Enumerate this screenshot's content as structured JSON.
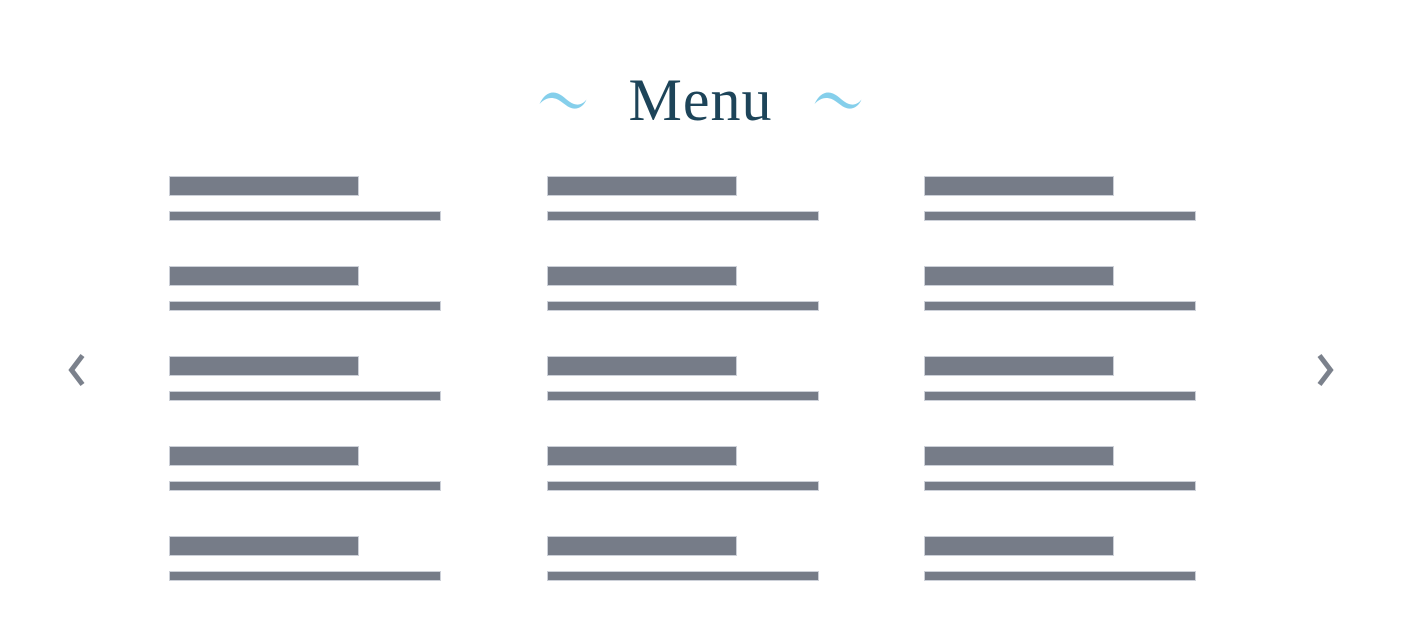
{
  "header": {
    "title": "Menu",
    "title_color": "#1d4459",
    "wave_left_icon": "wave-tilde-icon",
    "wave_right_icon": "wave-tilde-icon",
    "wave_color": "#85cfeb"
  },
  "carousel": {
    "prev_icon": "chevron-left-icon",
    "next_icon": "chevron-right-icon",
    "arrow_color": "#7b818c"
  },
  "menu_grid": {
    "placeholder_bar_color": "#767c88",
    "placeholder_bar_border_color": "#ccd0d8",
    "columns": [
      {
        "id": "column-1",
        "item_count": 5
      },
      {
        "id": "column-2",
        "item_count": 5
      },
      {
        "id": "column-3",
        "item_count": 5
      }
    ],
    "item_structure": [
      "name-placeholder-bar",
      "description-placeholder-bar"
    ]
  }
}
